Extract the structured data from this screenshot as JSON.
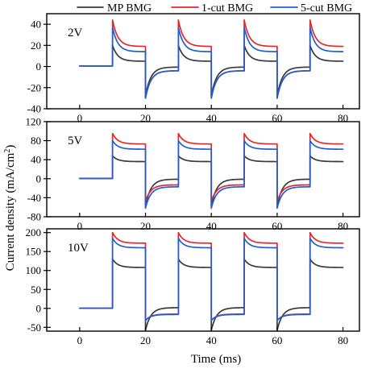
{
  "chart_data": {
    "type": "line",
    "xlabel": "Time (ms)",
    "ylabel": "Current density (mA/cm",
    "ylabel_sup": "2",
    "ylabel_end": ")",
    "legend": {
      "placement": "top",
      "entries": [
        {
          "name": "MP BMG",
          "color": "#3a3a3a"
        },
        {
          "name": "1-cut BMG",
          "color": "#e8262a"
        },
        {
          "name": "5-cut BMG",
          "color": "#1f5fd1"
        }
      ]
    },
    "panels": [
      {
        "label": "2V",
        "xlim": [
          -10,
          85
        ],
        "ylim": [
          -40,
          50
        ],
        "xticks": [
          0,
          20,
          40,
          60,
          80
        ],
        "yticks": [
          -40,
          -20,
          0,
          20,
          40
        ],
        "series": [
          {
            "name": "MP BMG",
            "color": "#3a3a3a",
            "base": 0.5,
            "on_peak": 20,
            "on_steady": 5,
            "off_peak": -28,
            "off_steady": -0.5
          },
          {
            "name": "1-cut BMG",
            "color": "#e8262a",
            "base": 0.5,
            "on_peak": 44,
            "on_steady": 19,
            "off_peak": -30,
            "off_steady": -4
          },
          {
            "name": "5-cut BMG",
            "color": "#1f5fd1",
            "base": 0.5,
            "on_peak": 37,
            "on_steady": 14,
            "off_peak": -30,
            "off_steady": -4
          }
        ]
      },
      {
        "label": "5V",
        "xlim": [
          -10,
          85
        ],
        "ylim": [
          -80,
          120
        ],
        "xticks": [
          0,
          20,
          40,
          60,
          80
        ],
        "yticks": [
          -80,
          -40,
          0,
          40,
          80,
          120
        ],
        "series": [
          {
            "name": "MP BMG",
            "color": "#3a3a3a",
            "base": 0.5,
            "on_peak": 48,
            "on_steady": 36,
            "off_peak": -58,
            "off_steady": -1
          },
          {
            "name": "1-cut BMG",
            "color": "#e8262a",
            "base": 0.5,
            "on_peak": 95,
            "on_steady": 73,
            "off_peak": -48,
            "off_steady": -13
          },
          {
            "name": "5-cut BMG",
            "color": "#1f5fd1",
            "base": 0.5,
            "on_peak": 80,
            "on_steady": 62,
            "off_peak": -62,
            "off_steady": -17
          }
        ]
      },
      {
        "label": "10V",
        "xlim": [
          -10,
          85
        ],
        "ylim": [
          -60,
          210
        ],
        "xticks": [
          0,
          20,
          40,
          60,
          80
        ],
        "yticks": [
          -50,
          0,
          50,
          100,
          150,
          200
        ],
        "series": [
          {
            "name": "MP BMG",
            "color": "#3a3a3a",
            "base": 0.5,
            "on_peak": 130,
            "on_steady": 108,
            "off_peak": -58,
            "off_steady": 2
          },
          {
            "name": "1-cut BMG",
            "color": "#e8262a",
            "base": 0.5,
            "on_peak": 200,
            "on_steady": 172,
            "off_peak": -32,
            "off_steady": -15
          },
          {
            "name": "5-cut BMG",
            "color": "#1f5fd1",
            "base": 0.5,
            "on_peak": 185,
            "on_steady": 160,
            "off_peak": -32,
            "off_steady": -16
          }
        ]
      }
    ],
    "pulse": {
      "on_times": [
        10,
        30,
        50,
        70
      ],
      "off_times": [
        20,
        40,
        60
      ],
      "end": 80
    }
  }
}
